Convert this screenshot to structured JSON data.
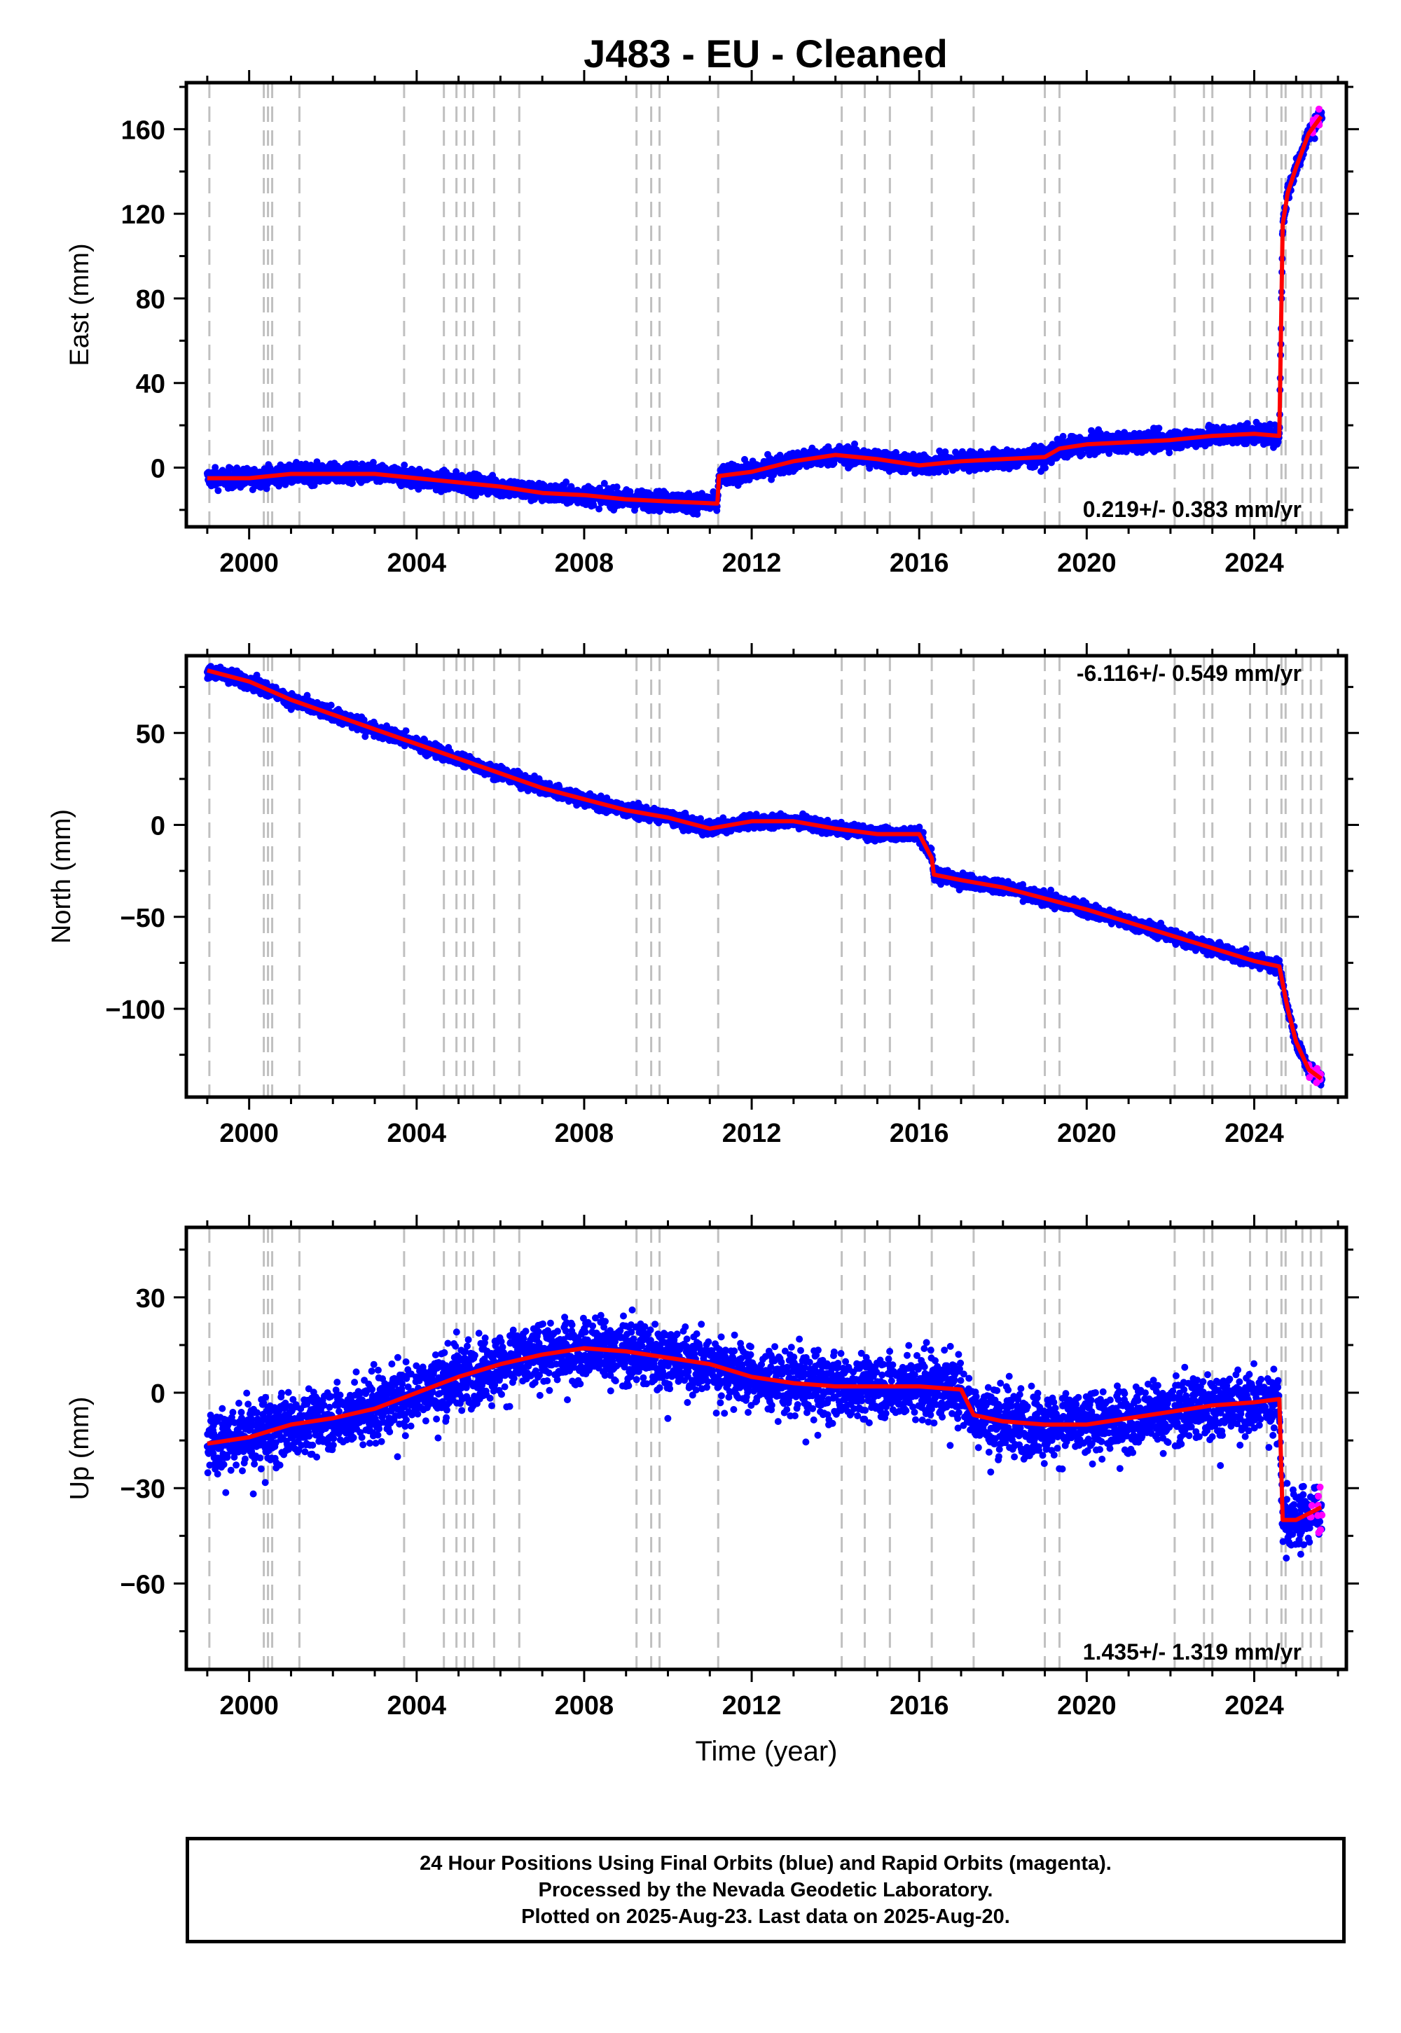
{
  "title": "J483  - EU - Cleaned",
  "colors": {
    "final": "#0000ff",
    "rapid": "#ff00ff",
    "model": "#ff0000",
    "dash": "#c0c0c0",
    "frame": "#000000"
  },
  "footer": {
    "line1": "24 Hour Positions Using Final Orbits (blue) and Rapid Orbits (magenta).",
    "line2": "Processed by the Nevada Geodetic Laboratory.",
    "line3": "Plotted on 2025-Aug-23. Last data on 2025-Aug-20."
  },
  "chart_data": [
    {
      "type": "scatter",
      "panel": "east",
      "ylabel": "East (mm)",
      "xlabel": "",
      "xlim": [
        1998.5,
        2026.2
      ],
      "ylim": [
        -28,
        182
      ],
      "xticks": [
        2000,
        2004,
        2008,
        2012,
        2016,
        2020,
        2024
      ],
      "yticks": [
        0,
        40,
        80,
        120,
        160
      ],
      "rate_text": "0.219+/- 0.383 mm/yr",
      "rate_position": "bottom-right",
      "event_lines": [
        1999.05,
        2000.35,
        2000.45,
        2000.55,
        2001.2,
        2003.7,
        2004.65,
        2004.95,
        2005.15,
        2005.35,
        2005.85,
        2006.45,
        2009.25,
        2009.6,
        2009.8,
        2011.2,
        2014.15,
        2014.7,
        2015.3,
        2016.3,
        2017.3,
        2019.0,
        2019.35,
        2022.1,
        2022.8,
        2023.0,
        2023.9,
        2024.3,
        2024.65,
        2024.75,
        2025.15,
        2025.35,
        2025.6
      ],
      "model": [
        {
          "x": 1999.0,
          "y": -5
        },
        {
          "x": 2000.0,
          "y": -5
        },
        {
          "x": 2001.0,
          "y": -3
        },
        {
          "x": 2002.0,
          "y": -3
        },
        {
          "x": 2003.0,
          "y": -3
        },
        {
          "x": 2004.0,
          "y": -5
        },
        {
          "x": 2005.0,
          "y": -7
        },
        {
          "x": 2006.0,
          "y": -9
        },
        {
          "x": 2007.0,
          "y": -12
        },
        {
          "x": 2008.0,
          "y": -13
        },
        {
          "x": 2009.0,
          "y": -15
        },
        {
          "x": 2010.0,
          "y": -16
        },
        {
          "x": 2011.18,
          "y": -17
        },
        {
          "x": 2011.22,
          "y": -4
        },
        {
          "x": 2012.0,
          "y": -2
        },
        {
          "x": 2013.0,
          "y": 3
        },
        {
          "x": 2014.0,
          "y": 6
        },
        {
          "x": 2015.0,
          "y": 4
        },
        {
          "x": 2016.0,
          "y": 1
        },
        {
          "x": 2017.0,
          "y": 3
        },
        {
          "x": 2018.0,
          "y": 4
        },
        {
          "x": 2019.0,
          "y": 5
        },
        {
          "x": 2019.35,
          "y": 9
        },
        {
          "x": 2020.0,
          "y": 11
        },
        {
          "x": 2021.0,
          "y": 12
        },
        {
          "x": 2022.0,
          "y": 13
        },
        {
          "x": 2023.0,
          "y": 15
        },
        {
          "x": 2024.0,
          "y": 16
        },
        {
          "x": 2024.6,
          "y": 15
        },
        {
          "x": 2024.68,
          "y": 115
        },
        {
          "x": 2024.8,
          "y": 130
        },
        {
          "x": 2025.0,
          "y": 142
        },
        {
          "x": 2025.3,
          "y": 158
        },
        {
          "x": 2025.6,
          "y": 166
        }
      ]
    },
    {
      "type": "scatter",
      "panel": "north",
      "ylabel": "North (mm)",
      "xlabel": "",
      "xlim": [
        1998.5,
        2026.2
      ],
      "ylim": [
        -148,
        92
      ],
      "xticks": [
        2000,
        2004,
        2008,
        2012,
        2016,
        2020,
        2024
      ],
      "yticks": [
        -100,
        -50,
        0,
        50
      ],
      "rate_text": "-6.116+/- 0.549 mm/yr",
      "rate_position": "top-right",
      "event_lines": [
        1999.05,
        2000.35,
        2000.45,
        2000.55,
        2001.2,
        2003.7,
        2004.65,
        2004.95,
        2005.15,
        2005.35,
        2005.85,
        2006.45,
        2009.25,
        2009.6,
        2009.8,
        2011.2,
        2014.15,
        2014.7,
        2015.3,
        2016.3,
        2017.3,
        2019.0,
        2019.35,
        2022.1,
        2022.8,
        2023.0,
        2023.9,
        2024.3,
        2024.65,
        2024.75,
        2025.15,
        2025.35,
        2025.6
      ],
      "model": [
        {
          "x": 1999.0,
          "y": 84
        },
        {
          "x": 2000.0,
          "y": 78
        },
        {
          "x": 2001.0,
          "y": 68
        },
        {
          "x": 2002.0,
          "y": 60
        },
        {
          "x": 2003.0,
          "y": 52
        },
        {
          "x": 2004.0,
          "y": 44
        },
        {
          "x": 2005.0,
          "y": 36
        },
        {
          "x": 2006.0,
          "y": 28
        },
        {
          "x": 2007.0,
          "y": 20
        },
        {
          "x": 2008.0,
          "y": 14
        },
        {
          "x": 2009.0,
          "y": 8
        },
        {
          "x": 2010.0,
          "y": 4
        },
        {
          "x": 2011.0,
          "y": -2
        },
        {
          "x": 2012.0,
          "y": 2
        },
        {
          "x": 2013.0,
          "y": 2
        },
        {
          "x": 2014.0,
          "y": -2
        },
        {
          "x": 2015.0,
          "y": -5
        },
        {
          "x": 2016.0,
          "y": -5
        },
        {
          "x": 2016.3,
          "y": -18
        },
        {
          "x": 2016.35,
          "y": -27
        },
        {
          "x": 2017.0,
          "y": -30
        },
        {
          "x": 2018.0,
          "y": -34
        },
        {
          "x": 2019.0,
          "y": -40
        },
        {
          "x": 2020.0,
          "y": -46
        },
        {
          "x": 2021.0,
          "y": -53
        },
        {
          "x": 2022.0,
          "y": -60
        },
        {
          "x": 2023.0,
          "y": -67
        },
        {
          "x": 2024.0,
          "y": -74
        },
        {
          "x": 2024.6,
          "y": -77
        },
        {
          "x": 2024.8,
          "y": -100
        },
        {
          "x": 2025.0,
          "y": -118
        },
        {
          "x": 2025.3,
          "y": -133
        },
        {
          "x": 2025.6,
          "y": -138
        }
      ]
    },
    {
      "type": "scatter",
      "panel": "up",
      "ylabel": "Up (mm)",
      "xlabel": "Time (year)",
      "xlim": [
        1998.5,
        2026.2
      ],
      "ylim": [
        -87,
        52
      ],
      "xticks": [
        2000,
        2004,
        2008,
        2012,
        2016,
        2020,
        2024
      ],
      "yticks": [
        -60,
        -30,
        0,
        30
      ],
      "rate_text": "1.435+/- 1.319 mm/yr",
      "rate_position": "bottom-right",
      "event_lines": [
        1999.05,
        2000.35,
        2000.45,
        2000.55,
        2001.2,
        2003.7,
        2004.65,
        2004.95,
        2005.15,
        2005.35,
        2005.85,
        2006.45,
        2009.25,
        2009.6,
        2009.8,
        2011.2,
        2014.15,
        2014.7,
        2015.3,
        2016.3,
        2017.3,
        2019.0,
        2019.35,
        2022.1,
        2022.8,
        2023.0,
        2023.9,
        2024.3,
        2024.65,
        2024.75,
        2025.15,
        2025.35,
        2025.6
      ],
      "model": [
        {
          "x": 1999.0,
          "y": -16
        },
        {
          "x": 2000.0,
          "y": -14
        },
        {
          "x": 2001.0,
          "y": -10
        },
        {
          "x": 2002.0,
          "y": -8
        },
        {
          "x": 2003.0,
          "y": -5
        },
        {
          "x": 2004.0,
          "y": 0
        },
        {
          "x": 2005.0,
          "y": 5
        },
        {
          "x": 2006.0,
          "y": 9
        },
        {
          "x": 2007.0,
          "y": 12
        },
        {
          "x": 2008.0,
          "y": 14
        },
        {
          "x": 2009.0,
          "y": 13
        },
        {
          "x": 2010.0,
          "y": 11
        },
        {
          "x": 2011.0,
          "y": 9
        },
        {
          "x": 2012.0,
          "y": 5
        },
        {
          "x": 2013.0,
          "y": 3
        },
        {
          "x": 2014.0,
          "y": 2
        },
        {
          "x": 2015.0,
          "y": 2
        },
        {
          "x": 2016.0,
          "y": 2
        },
        {
          "x": 2017.0,
          "y": 1
        },
        {
          "x": 2017.3,
          "y": -7
        },
        {
          "x": 2018.0,
          "y": -9
        },
        {
          "x": 2019.0,
          "y": -10
        },
        {
          "x": 2020.0,
          "y": -10
        },
        {
          "x": 2021.0,
          "y": -8
        },
        {
          "x": 2022.0,
          "y": -6
        },
        {
          "x": 2023.0,
          "y": -4
        },
        {
          "x": 2024.0,
          "y": -3
        },
        {
          "x": 2024.6,
          "y": -2
        },
        {
          "x": 2024.68,
          "y": -40
        },
        {
          "x": 2025.0,
          "y": -40
        },
        {
          "x": 2025.3,
          "y": -38
        },
        {
          "x": 2025.6,
          "y": -36
        }
      ]
    }
  ]
}
